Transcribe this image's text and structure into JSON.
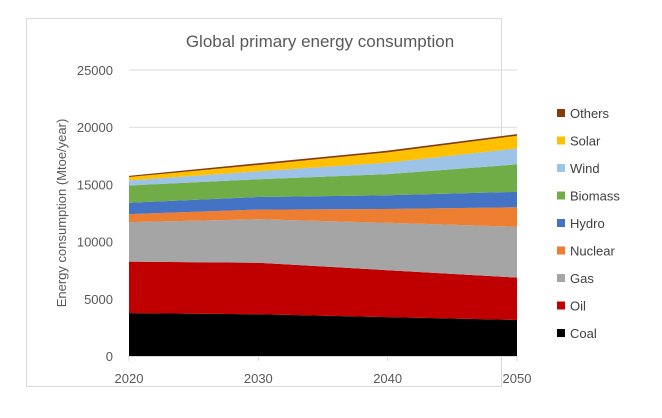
{
  "chart_data": {
    "type": "area",
    "stacked": true,
    "title": "Global primary energy consumption",
    "xlabel": "",
    "ylabel": "Energy consumption (Mtoe/year)",
    "x": [
      2020,
      2030,
      2040,
      2050
    ],
    "x_ticks": [
      "2020",
      "2030",
      "2040",
      "2050"
    ],
    "ylim": [
      0,
      25000
    ],
    "y_ticks": [
      "0",
      "5000",
      "10000",
      "15000",
      "20000",
      "25000"
    ],
    "grid": true,
    "legend_position": "right",
    "series": [
      {
        "name": "Coal",
        "color": "#000000",
        "values": [
          3750,
          3650,
          3400,
          3150
        ]
      },
      {
        "name": "Oil",
        "color": "#c00000",
        "values": [
          4500,
          4500,
          4100,
          3700
        ]
      },
      {
        "name": "Gas",
        "color": "#a5a5a5",
        "values": [
          3450,
          3800,
          4150,
          4450
        ]
      },
      {
        "name": "Nuclear",
        "color": "#ed7d31",
        "values": [
          700,
          850,
          1200,
          1700
        ]
      },
      {
        "name": "Hydro",
        "color": "#4472c4",
        "values": [
          1000,
          1100,
          1200,
          1350
        ]
      },
      {
        "name": "Biomass",
        "color": "#70ad47",
        "values": [
          1500,
          1550,
          1850,
          2400
        ]
      },
      {
        "name": "Wind",
        "color": "#9dc3e6",
        "values": [
          450,
          700,
          1000,
          1400
        ]
      },
      {
        "name": "Solar",
        "color": "#ffc000",
        "values": [
          300,
          550,
          900,
          1100
        ]
      },
      {
        "name": "Others",
        "color": "#843c0c",
        "values": [
          100,
          150,
          150,
          150
        ]
      }
    ],
    "legend_order": [
      "Others",
      "Solar",
      "Wind",
      "Biomass",
      "Hydro",
      "Nuclear",
      "Gas",
      "Oil",
      "Coal"
    ]
  }
}
